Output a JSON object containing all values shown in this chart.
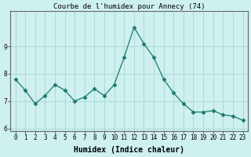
{
  "x": [
    0,
    1,
    2,
    3,
    4,
    5,
    6,
    7,
    8,
    9,
    10,
    11,
    12,
    13,
    14,
    15,
    16,
    17,
    18,
    19,
    20,
    21,
    22,
    23
  ],
  "y": [
    7.8,
    7.4,
    6.9,
    7.2,
    7.6,
    7.4,
    7.0,
    7.15,
    7.45,
    7.2,
    7.6,
    8.6,
    9.7,
    9.1,
    8.6,
    7.8,
    7.3,
    6.9,
    6.6,
    6.6,
    6.65,
    6.5,
    6.45,
    6.3
  ],
  "title": "Courbe de l'humidex pour Annecy (74)",
  "xlabel": "Humidex (Indice chaleur)",
  "ylabel": "",
  "ylim": [
    5.9,
    10.3
  ],
  "xlim": [
    -0.5,
    23.5
  ],
  "yticks": [
    6,
    7,
    8,
    9
  ],
  "xtick_labels": [
    "0",
    "1",
    "2",
    "3",
    "4",
    "5",
    "6",
    "7",
    "8",
    "9",
    "10",
    "11",
    "12",
    "13",
    "14",
    "15",
    "16",
    "17",
    "18",
    "19",
    "20",
    "21",
    "22",
    "23"
  ],
  "line_color": "#1a7a6e",
  "marker": "D",
  "marker_size": 2.5,
  "bg_color": "#cef0ee",
  "grid_color": "#aadad6",
  "axis_color": "#666666",
  "title_fontsize": 6.5,
  "label_fontsize": 7,
  "tick_fontsize": 5.5
}
